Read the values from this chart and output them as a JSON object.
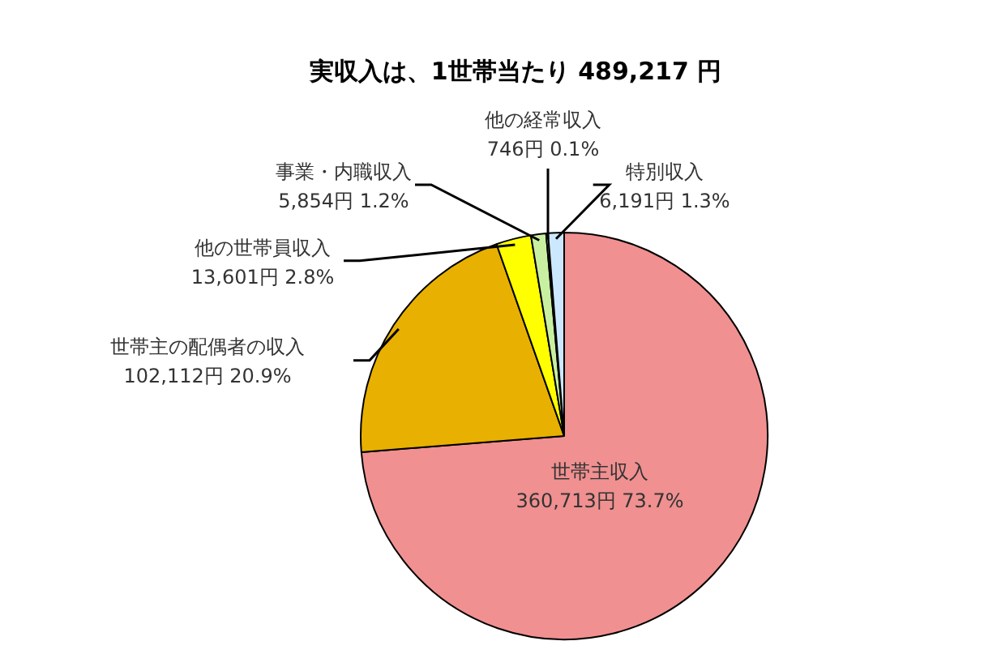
{
  "chart_data": {
    "type": "pie",
    "title": "実収入は、1世帯当たり 489,217 円",
    "categories": [
      "世帯主収入",
      "世帯主の配偶者の収入",
      "他の世帯員収入",
      "事業・内職収入",
      "他の経常収入",
      "特別収入"
    ],
    "values": [
      360713,
      102112,
      13601,
      5854,
      746,
      6191
    ],
    "colors": [
      "#f09090",
      "#e8b000",
      "#ffff00",
      "#c8f0a0",
      "#f0f8e0",
      "#cce8ff"
    ],
    "value_labels": [
      "360,713円 73.7%",
      "102,112円 20.9%",
      "13,601円 2.8%",
      "5,854円 1.2%",
      "746円 0.1%",
      "6,191円 1.3%"
    ],
    "legend": false
  }
}
